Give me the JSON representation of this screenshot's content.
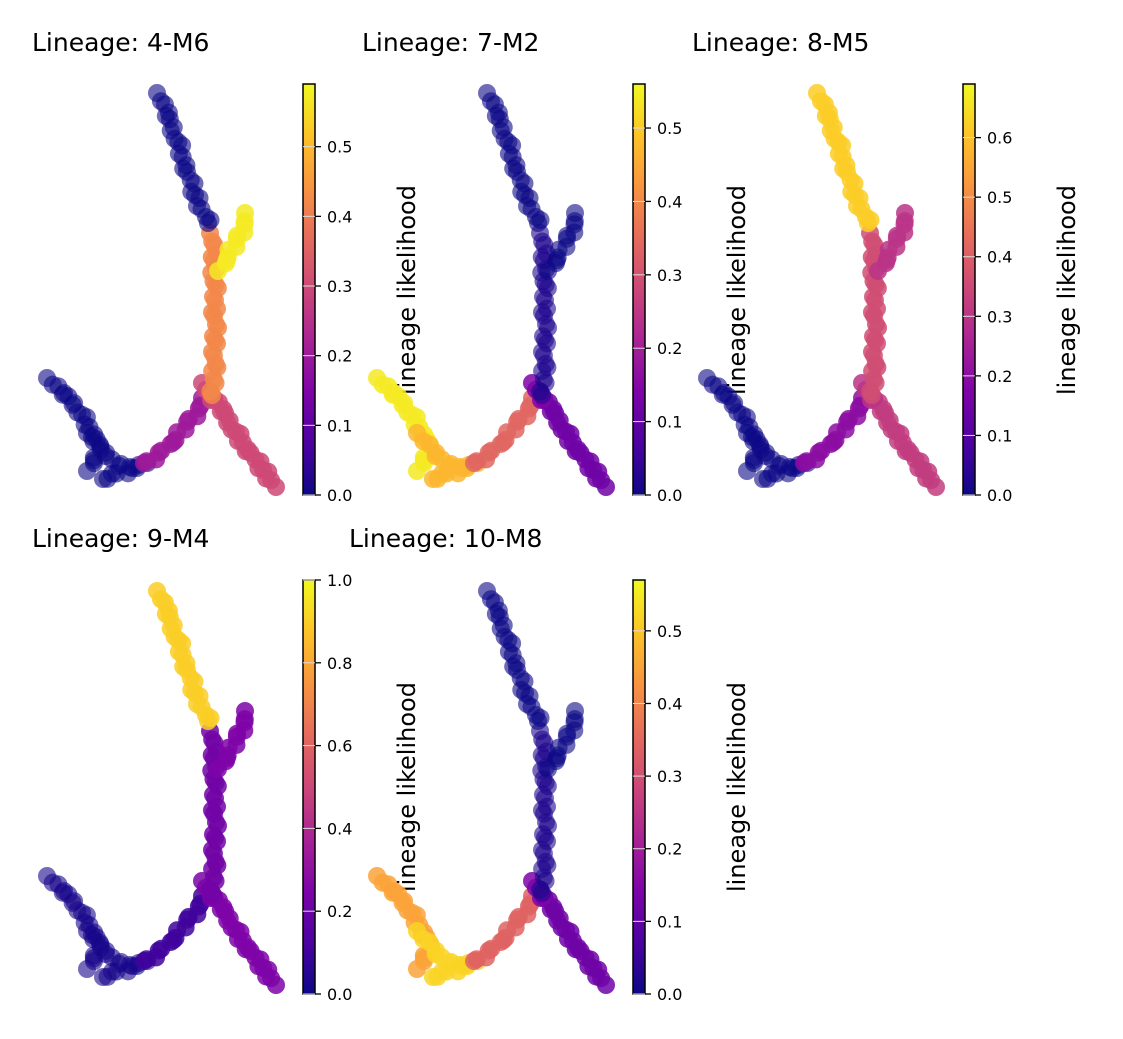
{
  "chart_data": [
    {
      "type": "scatter",
      "title": "Lineage: 4-M6",
      "colorbar": {
        "label": "lineage likelihood",
        "colormap": "plasma",
        "range": [
          0,
          0.59
        ],
        "ticks": [
          "0.0",
          "0.1",
          "0.2",
          "0.3",
          "0.4",
          "0.5"
        ]
      },
      "branch_likelihood": {
        "top_arm": 0.0,
        "upper_right_arm": 0.57,
        "trunk": 0.42,
        "lower_right_arm": 0.3,
        "junction": 0.3,
        "connector": 0.2,
        "left_cluster": 0.0,
        "left_arm": 0.0
      }
    },
    {
      "type": "scatter",
      "title": "Lineage: 7-M2",
      "colorbar": {
        "label": "lineage likelihood",
        "colormap": "plasma",
        "range": [
          0,
          0.56
        ],
        "ticks": [
          "0.0",
          "0.1",
          "0.2",
          "0.3",
          "0.4",
          "0.5"
        ]
      },
      "branch_likelihood": {
        "top_arm": 0.0,
        "upper_right_arm": 0.0,
        "trunk": 0.02,
        "lower_right_arm": 0.12,
        "junction": 0.14,
        "connector": 0.34,
        "left_cluster": 0.47,
        "left_arm": 0.54
      }
    },
    {
      "type": "scatter",
      "title": "Lineage: 8-M5",
      "colorbar": {
        "label": "lineage likelihood",
        "colormap": "plasma",
        "range": [
          0,
          0.69
        ],
        "ticks": [
          "0.0",
          "0.1",
          "0.2",
          "0.3",
          "0.4",
          "0.5",
          "0.6"
        ]
      },
      "branch_likelihood": {
        "top_arm": 0.62,
        "upper_right_arm": 0.3,
        "trunk": 0.36,
        "lower_right_arm": 0.32,
        "junction": 0.3,
        "connector": 0.2,
        "left_cluster": 0.0,
        "left_arm": 0.0
      }
    },
    {
      "type": "scatter",
      "title": "Lineage: 9-M4",
      "colorbar": {
        "label": "lineage likelihood",
        "colormap": "plasma",
        "range": [
          0,
          1.0
        ],
        "ticks": [
          "0.0",
          "0.2",
          "0.4",
          "0.6",
          "0.8",
          "1.0"
        ]
      },
      "branch_likelihood": {
        "top_arm": 0.9,
        "upper_right_arm": 0.25,
        "trunk": 0.22,
        "lower_right_arm": 0.25,
        "junction": 0.24,
        "connector": 0.1,
        "left_cluster": 0.02,
        "left_arm": 0.02
      }
    },
    {
      "type": "scatter",
      "title": "Lineage: 10-M8",
      "colorbar": {
        "label": "lineage likelihood",
        "colormap": "plasma",
        "range": [
          0,
          0.57
        ],
        "ticks": [
          "0.0",
          "0.1",
          "0.2",
          "0.3",
          "0.4",
          "0.5"
        ]
      },
      "branch_likelihood": {
        "top_arm": 0.0,
        "upper_right_arm": 0.0,
        "trunk": 0.02,
        "lower_right_arm": 0.12,
        "junction": 0.14,
        "connector": 0.34,
        "left_cluster": 0.52,
        "left_arm": 0.45
      }
    }
  ]
}
